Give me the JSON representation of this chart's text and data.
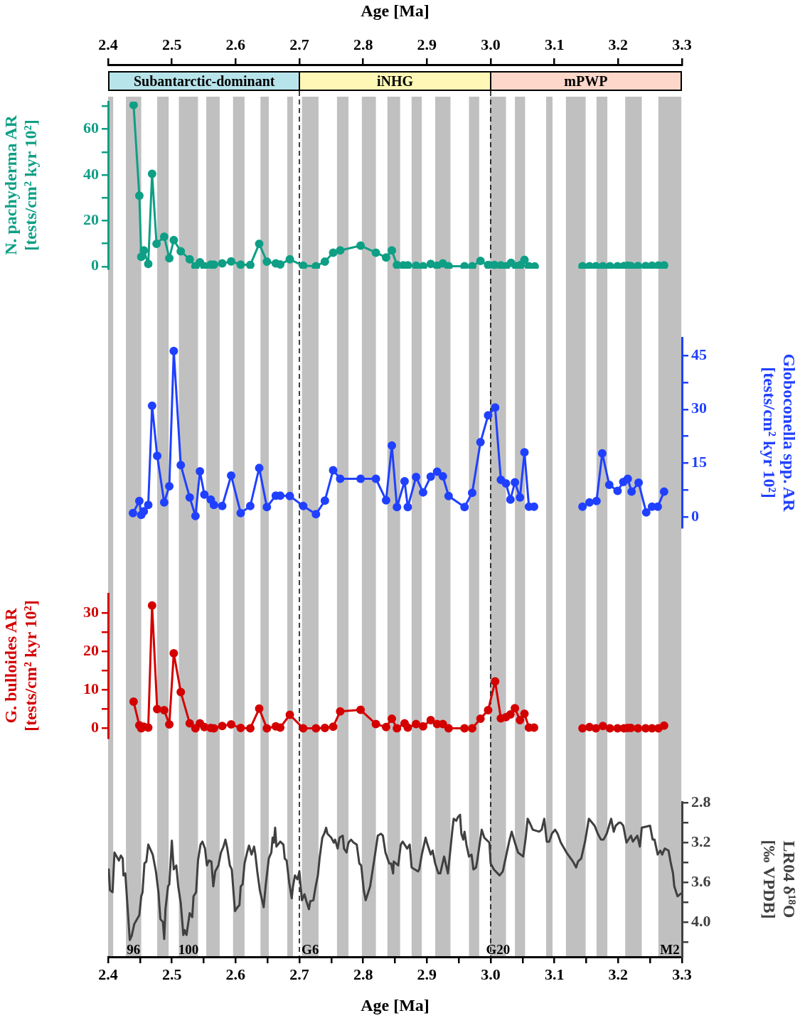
{
  "chart_data": [
    {
      "type": "line",
      "marker": "circle",
      "xlim": [
        2.4,
        3.3
      ],
      "xlabel": "Age [Ma]",
      "xticks": [
        2.4,
        2.5,
        2.6,
        2.7,
        2.8,
        2.9,
        {
          "value": 3,
          "label": "3.0"
        },
        3.1,
        3.2,
        3.3
      ],
      "ylim": [
        -1,
        72
      ],
      "yticks": [
        0,
        {
          "value": 10,
          "label": null
        },
        20,
        {
          "value": 30,
          "label": null
        },
        40,
        {
          "value": 50,
          "label": null
        },
        60,
        {
          "value": 70,
          "label": null
        }
      ],
      "ylabel": "N. pachyderma AR\n[tests/cm² kyr 10²]",
      "series": [
        {
          "color": "#0e9f85",
          "x": [
            2.44,
            2.449,
            2.452,
            2.456,
            2.463,
            2.469,
            2.476,
            2.488,
            2.496,
            2.503,
            2.514,
            2.528,
            2.537,
            2.544,
            2.551,
            2.561,
            2.566,
            2.579,
            2.593,
            2.608,
            2.623,
            2.637,
            2.649,
            2.663,
            2.67,
            2.685,
            2.706,
            2.726,
            2.74,
            2.753,
            2.764,
            2.796,
            2.82,
            2.836,
            2.845,
            2.853,
            2.863,
            2.87,
            2.883,
            2.894,
            2.906,
            2.916,
            2.925,
            2.934,
            2.959,
            2.971,
            2.984,
            2.996,
            3.006,
            3.016,
            3.024,
            3.032,
            3.04,
            3.047,
            3.053,
            3.06,
            3.069,
            3.1,
            3.144,
            3.155,
            3.165,
            3.176,
            3.187,
            3.199,
            3.209,
            3.215,
            3.22,
            3.231,
            3.243,
            3.253,
            3.263,
            3.272
          ],
          "values": [
            70.5,
            30.9,
            4.2,
            7.0,
            1.1,
            40.5,
            9.9,
            13.0,
            3.6,
            11.5,
            6.6,
            3.1,
            0.1,
            1.8,
            0.1,
            0.8,
            0.8,
            1.3,
            2.2,
            0.8,
            0.6,
            9.9,
            2.1,
            1.3,
            0.9,
            3.1,
            0.3,
            0.1,
            2.1,
            6.0,
            7.0,
            9.1,
            6.0,
            3.9,
            7.0,
            0.6,
            0.5,
            0.5,
            0.3,
            0.1,
            1.1,
            0.3,
            1.3,
            0.1,
            0.1,
            0.1,
            2.4,
            0.6,
            0.6,
            0.5,
            0.1,
            1.6,
            0.1,
            0.6,
            2.9,
            0.1,
            0,
            null,
            0.1,
            0.1,
            0.1,
            0.1,
            0.1,
            0.1,
            0.2,
            0.3,
            0.2,
            0.2,
            0.2,
            0.3,
            0.4,
            0.5
          ]
        }
      ],
      "bands": [
        {
          "axis": "x",
          "from": 2.4,
          "to": 2.408,
          "color": "#c0c0c0"
        },
        {
          "axis": "x",
          "from": 2.428,
          "to": 2.452,
          "color": "#c0c0c0"
        },
        {
          "axis": "x",
          "from": 2.477,
          "to": 2.495,
          "color": "#c0c0c0"
        },
        {
          "axis": "x",
          "from": 2.511,
          "to": 2.541,
          "color": "#c0c0c0"
        },
        {
          "axis": "x",
          "from": 2.554,
          "to": 2.575,
          "color": "#c0c0c0"
        },
        {
          "axis": "x",
          "from": 2.596,
          "to": 2.614,
          "color": "#c0c0c0"
        },
        {
          "axis": "x",
          "from": 2.639,
          "to": 2.652,
          "color": "#c0c0c0"
        },
        {
          "axis": "x",
          "from": 2.681,
          "to": 2.69,
          "color": "#c0c0c0"
        },
        {
          "axis": "x",
          "from": 2.704,
          "to": 2.73,
          "color": "#c0c0c0"
        },
        {
          "axis": "x",
          "from": 2.759,
          "to": 2.777,
          "color": "#c0c0c0"
        },
        {
          "axis": "x",
          "from": 2.798,
          "to": 2.82,
          "color": "#c0c0c0"
        },
        {
          "axis": "x",
          "from": 2.838,
          "to": 2.858,
          "color": "#c0c0c0"
        },
        {
          "axis": "x",
          "from": 2.876,
          "to": 2.892,
          "color": "#c0c0c0"
        },
        {
          "axis": "x",
          "from": 2.913,
          "to": 2.937,
          "color": "#c0c0c0"
        },
        {
          "axis": "x",
          "from": 2.966,
          "to": 2.982,
          "color": "#c0c0c0"
        },
        {
          "axis": "x",
          "from": 2.999,
          "to": 3.024,
          "color": "#c0c0c0"
        },
        {
          "axis": "x",
          "from": 3.038,
          "to": 3.054,
          "color": "#c0c0c0"
        },
        {
          "axis": "x",
          "from": 3.087,
          "to": 3.097,
          "color": "#c0c0c0"
        },
        {
          "axis": "x",
          "from": 3.118,
          "to": 3.149,
          "color": "#c0c0c0"
        },
        {
          "axis": "x",
          "from": 3.166,
          "to": 3.183,
          "color": "#c0c0c0"
        },
        {
          "axis": "x",
          "from": 3.211,
          "to": 3.237,
          "color": "#c0c0c0"
        },
        {
          "axis": "x",
          "from": 3.263,
          "to": 3.299,
          "color": "#c0c0c0"
        }
      ],
      "ref_lines": [
        {
          "axis": "x",
          "value": 2.7,
          "line_style": "dashed"
        },
        {
          "axis": "x",
          "value": 3.0,
          "line_style": "dashed"
        }
      ]
    },
    {
      "type": "other",
      "annotations": [
        "Subantarctic-dominant",
        "iNHG",
        "mPWP"
      ],
      "colors": [
        "#b7e4ea",
        "#fff7b5",
        "#fdd7c9"
      ]
    },
    {
      "type": "line",
      "marker": "circle",
      "xlim": [
        2.4,
        3.3
      ],
      "tick_labels": "y",
      "ylim": [
        -3,
        50
      ],
      "yticks": [
        0,
        {
          "value": 7.5,
          "label": null
        },
        15,
        {
          "value": 22.5,
          "label": null
        },
        30,
        {
          "value": 37.5,
          "label": null
        },
        45
      ],
      "ylabel": "Globoconella spp. AR\n[tests/cm² kyr 10²]",
      "series": [
        {
          "color": "#2040ff",
          "x": [
            2.439,
            2.449,
            2.452,
            2.456,
            2.463,
            2.469,
            2.477,
            2.488,
            2.496,
            2.503,
            2.514,
            2.528,
            2.537,
            2.544,
            2.551,
            2.561,
            2.566,
            2.579,
            2.593,
            2.608,
            2.623,
            2.637,
            2.649,
            2.663,
            2.67,
            2.685,
            2.706,
            2.726,
            2.74,
            2.753,
            2.764,
            2.796,
            2.82,
            2.836,
            2.845,
            2.853,
            2.865,
            2.87,
            2.883,
            2.894,
            2.906,
            2.916,
            2.925,
            2.934,
            2.959,
            2.971,
            2.984,
            2.996,
            3.007,
            3.016,
            3.024,
            3.031,
            3.038,
            3.046,
            3.053,
            3.06,
            3.068,
            3.1,
            3.144,
            3.155,
            3.166,
            3.175,
            3.186,
            3.199,
            3.208,
            3.215,
            3.221,
            3.232,
            3.244,
            3.253,
            3.262,
            3.272
          ],
          "values": [
            1.0,
            4.4,
            0.5,
            1.5,
            3.3,
            31.0,
            17.0,
            4.0,
            8.5,
            46.3,
            14.4,
            5.4,
            0.2,
            12.7,
            6.2,
            4.8,
            3.3,
            3.0,
            11.5,
            1.0,
            3.0,
            13.6,
            2.7,
            5.9,
            5.9,
            5.8,
            3.0,
            0.7,
            4.5,
            13.0,
            10.6,
            10.6,
            10.6,
            4.6,
            19.9,
            2.7,
            9.9,
            2.7,
            11.1,
            6.8,
            11.2,
            12.6,
            11.3,
            5.8,
            2.7,
            6.7,
            20.8,
            28.3,
            30.5,
            10.3,
            9.3,
            4.8,
            9.6,
            5.4,
            18.0,
            2.8,
            2.8,
            null,
            2.8,
            4.0,
            4.4,
            17.7,
            8.9,
            7.2,
            9.7,
            10.6,
            7.0,
            9.5,
            1.2,
            2.8,
            2.8,
            7.0
          ]
        }
      ],
      "bands": [
        {
          "axis": "x",
          "from": 2.4,
          "to": 2.408,
          "color": "#c0c0c0"
        },
        {
          "axis": "x",
          "from": 2.428,
          "to": 2.452,
          "color": "#c0c0c0"
        },
        {
          "axis": "x",
          "from": 2.477,
          "to": 2.495,
          "color": "#c0c0c0"
        },
        {
          "axis": "x",
          "from": 2.511,
          "to": 2.541,
          "color": "#c0c0c0"
        },
        {
          "axis": "x",
          "from": 2.554,
          "to": 2.575,
          "color": "#c0c0c0"
        },
        {
          "axis": "x",
          "from": 2.596,
          "to": 2.614,
          "color": "#c0c0c0"
        },
        {
          "axis": "x",
          "from": 2.639,
          "to": 2.652,
          "color": "#c0c0c0"
        },
        {
          "axis": "x",
          "from": 2.681,
          "to": 2.69,
          "color": "#c0c0c0"
        },
        {
          "axis": "x",
          "from": 2.704,
          "to": 2.73,
          "color": "#c0c0c0"
        },
        {
          "axis": "x",
          "from": 2.759,
          "to": 2.777,
          "color": "#c0c0c0"
        },
        {
          "axis": "x",
          "from": 2.798,
          "to": 2.82,
          "color": "#c0c0c0"
        },
        {
          "axis": "x",
          "from": 2.838,
          "to": 2.858,
          "color": "#c0c0c0"
        },
        {
          "axis": "x",
          "from": 2.876,
          "to": 2.892,
          "color": "#c0c0c0"
        },
        {
          "axis": "x",
          "from": 2.913,
          "to": 2.937,
          "color": "#c0c0c0"
        },
        {
          "axis": "x",
          "from": 2.966,
          "to": 2.982,
          "color": "#c0c0c0"
        },
        {
          "axis": "x",
          "from": 2.999,
          "to": 3.024,
          "color": "#c0c0c0"
        },
        {
          "axis": "x",
          "from": 3.038,
          "to": 3.054,
          "color": "#c0c0c0"
        },
        {
          "axis": "x",
          "from": 3.087,
          "to": 3.097,
          "color": "#c0c0c0"
        },
        {
          "axis": "x",
          "from": 3.118,
          "to": 3.149,
          "color": "#c0c0c0"
        },
        {
          "axis": "x",
          "from": 3.166,
          "to": 3.183,
          "color": "#c0c0c0"
        },
        {
          "axis": "x",
          "from": 3.211,
          "to": 3.237,
          "color": "#c0c0c0"
        },
        {
          "axis": "x",
          "from": 3.263,
          "to": 3.299,
          "color": "#c0c0c0"
        }
      ],
      "ref_lines": [
        {
          "axis": "x",
          "value": 2.7,
          "line_style": "dashed"
        },
        {
          "axis": "x",
          "value": 3.0,
          "line_style": "dashed"
        }
      ]
    },
    {
      "type": "line",
      "marker": "circle",
      "xlim": [
        2.4,
        3.3
      ],
      "tick_labels": "y",
      "ylim": [
        -2.5,
        35
      ],
      "yticks": [
        0,
        {
          "value": 5,
          "label": null
        },
        10,
        {
          "value": 15,
          "label": null
        },
        20,
        {
          "value": 25,
          "label": null
        },
        30
      ],
      "ylabel": "G. bulloides AR\n[tests/cm² kyr 10²]",
      "series": [
        {
          "color": "#d40000",
          "x": [
            2.44,
            2.449,
            2.452,
            2.456,
            2.463,
            2.469,
            2.477,
            2.488,
            2.496,
            2.503,
            2.514,
            2.528,
            2.537,
            2.544,
            2.551,
            2.561,
            2.566,
            2.579,
            2.593,
            2.608,
            2.623,
            2.637,
            2.649,
            2.663,
            2.67,
            2.685,
            2.706,
            2.726,
            2.74,
            2.753,
            2.764,
            2.796,
            2.82,
            2.836,
            2.845,
            2.853,
            2.865,
            2.87,
            2.883,
            2.894,
            2.906,
            2.916,
            2.925,
            2.934,
            2.959,
            2.971,
            2.984,
            2.996,
            3.007,
            3.016,
            3.024,
            3.031,
            3.038,
            3.046,
            3.053,
            3.06,
            3.068,
            3.1,
            3.144,
            3.155,
            3.165,
            3.176,
            3.187,
            3.199,
            3.209,
            3.215,
            3.22,
            3.231,
            3.243,
            3.253,
            3.263,
            3.272
          ],
          "values": [
            6.9,
            0.8,
            0,
            0.4,
            0.2,
            31.9,
            5.0,
            4.7,
            1.0,
            19.5,
            9.4,
            1.3,
            0,
            1.3,
            0.3,
            0.1,
            0,
            0.6,
            1.0,
            0.1,
            0,
            5.1,
            0,
            0.5,
            0.2,
            3.5,
            0,
            0,
            0.1,
            0.4,
            4.4,
            4.8,
            1.1,
            0.3,
            2.5,
            0,
            1.3,
            0.2,
            1.1,
            0.5,
            2.1,
            1.1,
            1.1,
            0,
            0,
            0,
            2.5,
            4.7,
            12.2,
            2.6,
            2.9,
            3.6,
            5.2,
            2.1,
            3.8,
            0.2,
            0.2,
            null,
            0,
            0.3,
            0,
            0.6,
            0,
            0,
            0,
            0.1,
            0.1,
            0,
            0,
            0,
            0,
            0.7
          ]
        }
      ],
      "bands": [
        {
          "axis": "x",
          "from": 2.4,
          "to": 2.408,
          "color": "#c0c0c0"
        },
        {
          "axis": "x",
          "from": 2.428,
          "to": 2.452,
          "color": "#c0c0c0"
        },
        {
          "axis": "x",
          "from": 2.477,
          "to": 2.495,
          "color": "#c0c0c0"
        },
        {
          "axis": "x",
          "from": 2.511,
          "to": 2.541,
          "color": "#c0c0c0"
        },
        {
          "axis": "x",
          "from": 2.554,
          "to": 2.575,
          "color": "#c0c0c0"
        },
        {
          "axis": "x",
          "from": 2.596,
          "to": 2.614,
          "color": "#c0c0c0"
        },
        {
          "axis": "x",
          "from": 2.639,
          "to": 2.652,
          "color": "#c0c0c0"
        },
        {
          "axis": "x",
          "from": 2.681,
          "to": 2.69,
          "color": "#c0c0c0"
        },
        {
          "axis": "x",
          "from": 2.704,
          "to": 2.73,
          "color": "#c0c0c0"
        },
        {
          "axis": "x",
          "from": 2.759,
          "to": 2.777,
          "color": "#c0c0c0"
        },
        {
          "axis": "x",
          "from": 2.798,
          "to": 2.82,
          "color": "#c0c0c0"
        },
        {
          "axis": "x",
          "from": 2.838,
          "to": 2.858,
          "color": "#c0c0c0"
        },
        {
          "axis": "x",
          "from": 2.876,
          "to": 2.892,
          "color": "#c0c0c0"
        },
        {
          "axis": "x",
          "from": 2.913,
          "to": 2.937,
          "color": "#c0c0c0"
        },
        {
          "axis": "x",
          "from": 2.966,
          "to": 2.982,
          "color": "#c0c0c0"
        },
        {
          "axis": "x",
          "from": 2.999,
          "to": 3.024,
          "color": "#c0c0c0"
        },
        {
          "axis": "x",
          "from": 3.038,
          "to": 3.054,
          "color": "#c0c0c0"
        },
        {
          "axis": "x",
          "from": 3.087,
          "to": 3.097,
          "color": "#c0c0c0"
        },
        {
          "axis": "x",
          "from": 3.118,
          "to": 3.149,
          "color": "#c0c0c0"
        },
        {
          "axis": "x",
          "from": 3.166,
          "to": 3.183,
          "color": "#c0c0c0"
        },
        {
          "axis": "x",
          "from": 3.211,
          "to": 3.237,
          "color": "#c0c0c0"
        },
        {
          "axis": "x",
          "from": 3.263,
          "to": 3.299,
          "color": "#c0c0c0"
        }
      ],
      "ref_lines": [
        {
          "axis": "x",
          "value": 2.7,
          "line_style": "dashed"
        },
        {
          "axis": "x",
          "value": 3.0,
          "line_style": "dashed"
        }
      ]
    },
    {
      "type": "line",
      "xlim": [
        2.4,
        3.3
      ],
      "xlabel": "Age [Ma]",
      "xticks": [
        2.4,
        {
          "value": 2.45,
          "label": null
        },
        2.5,
        {
          "value": 2.55,
          "label": null
        },
        2.6,
        {
          "value": 2.65,
          "label": null
        },
        2.7,
        {
          "value": 2.75,
          "label": null
        },
        2.8,
        {
          "value": 2.85,
          "label": null
        },
        2.9,
        {
          "value": 2.95,
          "label": null
        },
        {
          "value": 3,
          "label": "3.0"
        },
        {
          "value": 3.05,
          "label": null
        },
        3.1,
        {
          "value": 3.15,
          "label": null
        },
        3.2,
        {
          "value": 3.25,
          "label": null
        },
        3.3
      ],
      "ylim": [
        4.35,
        2.79
      ],
      "yticks": [
        2.8,
        {
          "value": 3,
          "label": null
        },
        3.2,
        {
          "value": 3.4,
          "label": null
        },
        3.6,
        {
          "value": 3.8,
          "label": null
        },
        {
          "value": 4,
          "label": "4.0"
        },
        {
          "value": 4.2,
          "label": null
        }
      ],
      "ylabel": "LR04 δ¹⁸O\n[‰ VPDB]",
      "series": [
        {
          "color": "#404040",
          "x": [
            2.401,
            2.403,
            2.407,
            2.41,
            2.417,
            2.42,
            2.423,
            2.424,
            2.427,
            2.434,
            2.437,
            2.441,
            2.449,
            2.452,
            2.454,
            2.457,
            2.46,
            2.463,
            2.47,
            2.475,
            2.479,
            2.482,
            2.486,
            2.488,
            2.49,
            2.494,
            2.496,
            2.5,
            2.503,
            2.507,
            2.51,
            2.514,
            2.518,
            2.52,
            2.523,
            2.528,
            2.532,
            2.534,
            2.538,
            2.541,
            2.545,
            2.548,
            2.552,
            2.555,
            2.558,
            2.562,
            2.565,
            2.568,
            2.573,
            2.577,
            2.581,
            2.584,
            2.587,
            2.591,
            2.594,
            2.599,
            2.603,
            2.606,
            2.608,
            2.611,
            2.614,
            2.618,
            2.621,
            2.625,
            2.629,
            2.631,
            2.634,
            2.638,
            2.644,
            2.647,
            2.652,
            2.656,
            2.658,
            2.66,
            2.662,
            2.664,
            2.67,
            2.675,
            2.677,
            2.68,
            2.684,
            2.688,
            2.69,
            2.693,
            2.697,
            2.7,
            2.704,
            2.708,
            2.711,
            2.715,
            2.717,
            2.722,
            2.725,
            2.729,
            2.732,
            2.736,
            2.739,
            2.742,
            2.744,
            2.75,
            2.754,
            2.756,
            2.76,
            2.763,
            2.768,
            2.77,
            2.774,
            2.777,
            2.781,
            2.785,
            2.79,
            2.794,
            2.797,
            2.801,
            2.804,
            2.811,
            2.816,
            2.82,
            2.823,
            2.828,
            2.831,
            2.835,
            2.841,
            2.844,
            2.847,
            2.848,
            2.855,
            2.859,
            2.862,
            2.869,
            2.873,
            2.876,
            2.886,
            2.888,
            2.892,
            2.898,
            2.9,
            2.906,
            2.909,
            2.913,
            2.918,
            2.921,
            2.927,
            2.933,
            2.937,
            2.94,
            2.942,
            2.946,
            2.949,
            2.952,
            2.954,
            2.957,
            2.959,
            2.962,
            2.966,
            2.97,
            2.973,
            2.977,
            2.979,
            2.983,
            2.986,
            2.99,
            2.998,
            3.0,
            3.005,
            3.014,
            3.019,
            3.024,
            3.029,
            3.033,
            3.038,
            3.043,
            3.051,
            3.055,
            3.058,
            3.062,
            3.066,
            3.076,
            3.08,
            3.084,
            3.088,
            3.092,
            3.096,
            3.101,
            3.105,
            3.11,
            3.119,
            3.129,
            3.134,
            3.137,
            3.142,
            3.148,
            3.154,
            3.163,
            3.168,
            3.173,
            3.177,
            3.182,
            3.189,
            3.193,
            3.196,
            3.201,
            3.204,
            3.208,
            3.213,
            3.22,
            3.223,
            3.23,
            3.234,
            3.237,
            3.25,
            3.254,
            3.257,
            3.262,
            3.266,
            3.269,
            3.273,
            3.279,
            3.282,
            3.286,
            3.288,
            3.293,
            3.299
          ],
          "values": [
            3.47,
            3.68,
            3.7,
            3.3,
            3.38,
            3.33,
            3.36,
            3.53,
            3.51,
            4.18,
            4.14,
            4.02,
            3.93,
            3.74,
            3.7,
            3.41,
            3.39,
            3.22,
            3.32,
            3.49,
            3.7,
            3.97,
            4.0,
            4.17,
            3.87,
            3.64,
            3.62,
            3.18,
            3.47,
            3.43,
            3.64,
            3.81,
            4.13,
            4.08,
            4.13,
            3.91,
            3.95,
            3.74,
            3.7,
            3.38,
            3.22,
            3.19,
            3.26,
            3.43,
            3.38,
            3.39,
            3.64,
            3.49,
            3.43,
            3.3,
            3.24,
            3.17,
            3.26,
            3.43,
            3.47,
            3.89,
            3.85,
            3.83,
            3.64,
            3.62,
            3.41,
            3.3,
            3.23,
            3.32,
            3.24,
            3.32,
            3.49,
            3.68,
            3.85,
            3.64,
            3.36,
            3.3,
            3.15,
            3.2,
            3.05,
            3.24,
            3.19,
            3.22,
            3.36,
            3.38,
            3.6,
            3.76,
            3.64,
            3.53,
            3.57,
            3.49,
            3.78,
            3.72,
            3.79,
            3.87,
            3.79,
            3.78,
            3.66,
            3.53,
            3.34,
            3.15,
            3.11,
            3.05,
            3.11,
            3.15,
            3.2,
            3.17,
            3.26,
            3.15,
            3.13,
            3.26,
            3.3,
            3.2,
            3.17,
            3.2,
            3.22,
            3.41,
            3.43,
            3.68,
            3.78,
            3.64,
            3.43,
            3.26,
            3.13,
            3.11,
            3.13,
            3.3,
            3.41,
            3.41,
            3.51,
            3.39,
            3.43,
            3.22,
            3.19,
            3.26,
            3.22,
            3.45,
            3.49,
            3.47,
            3.32,
            3.15,
            3.2,
            3.32,
            3.28,
            3.41,
            3.51,
            3.51,
            3.34,
            3.51,
            3.26,
            3.07,
            2.96,
            2.98,
            2.94,
            2.92,
            3.11,
            3.17,
            3.09,
            3.22,
            3.34,
            3.32,
            3.47,
            3.45,
            3.38,
            3.2,
            3.07,
            3.15,
            3.2,
            3.41,
            3.47,
            3.53,
            3.49,
            3.34,
            3.19,
            3.09,
            3.2,
            3.3,
            3.34,
            3.15,
            2.96,
            3.01,
            3.07,
            3.09,
            3.07,
            2.96,
            3.19,
            3.19,
            3.11,
            3.07,
            3.11,
            3.2,
            3.3,
            3.39,
            3.45,
            3.39,
            3.36,
            3.19,
            2.96,
            3.03,
            3.11,
            3.17,
            3.17,
            3.11,
            2.96,
            3.09,
            3.03,
            3.0,
            3.0,
            3.03,
            3.2,
            3.13,
            3.19,
            3.13,
            3.24,
            3.05,
            3.03,
            3.17,
            3.17,
            3.32,
            3.28,
            3.32,
            3.26,
            3.28,
            3.39,
            3.51,
            3.64,
            3.74,
            3.71
          ]
        }
      ],
      "bands": [
        {
          "axis": "x",
          "from": 2.4,
          "to": 2.408,
          "color": "#c0c0c0"
        },
        {
          "axis": "x",
          "from": 2.428,
          "to": 2.452,
          "color": "#c0c0c0",
          "label": "96"
        },
        {
          "axis": "x",
          "from": 2.477,
          "to": 2.495,
          "color": "#c0c0c0"
        },
        {
          "axis": "x",
          "from": 2.511,
          "to": 2.541,
          "color": "#c0c0c0",
          "label": "100"
        },
        {
          "axis": "x",
          "from": 2.554,
          "to": 2.575,
          "color": "#c0c0c0"
        },
        {
          "axis": "x",
          "from": 2.596,
          "to": 2.614,
          "color": "#c0c0c0"
        },
        {
          "axis": "x",
          "from": 2.639,
          "to": 2.652,
          "color": "#c0c0c0"
        },
        {
          "axis": "x",
          "from": 2.681,
          "to": 2.69,
          "color": "#c0c0c0"
        },
        {
          "axis": "x",
          "from": 2.704,
          "to": 2.73,
          "color": "#c0c0c0",
          "label": "G6"
        },
        {
          "axis": "x",
          "from": 2.759,
          "to": 2.777,
          "color": "#c0c0c0"
        },
        {
          "axis": "x",
          "from": 2.798,
          "to": 2.82,
          "color": "#c0c0c0"
        },
        {
          "axis": "x",
          "from": 2.838,
          "to": 2.858,
          "color": "#c0c0c0"
        },
        {
          "axis": "x",
          "from": 2.876,
          "to": 2.892,
          "color": "#c0c0c0"
        },
        {
          "axis": "x",
          "from": 2.913,
          "to": 2.937,
          "color": "#c0c0c0"
        },
        {
          "axis": "x",
          "from": 2.966,
          "to": 2.982,
          "color": "#c0c0c0"
        },
        {
          "axis": "x",
          "from": 2.999,
          "to": 3.024,
          "color": "#c0c0c0",
          "label": "G20"
        },
        {
          "axis": "x",
          "from": 3.038,
          "to": 3.054,
          "color": "#c0c0c0"
        },
        {
          "axis": "x",
          "from": 3.087,
          "to": 3.097,
          "color": "#c0c0c0"
        },
        {
          "axis": "x",
          "from": 3.118,
          "to": 3.149,
          "color": "#c0c0c0"
        },
        {
          "axis": "x",
          "from": 3.166,
          "to": 3.183,
          "color": "#c0c0c0"
        },
        {
          "axis": "x",
          "from": 3.211,
          "to": 3.237,
          "color": "#c0c0c0"
        },
        {
          "axis": "x",
          "from": 3.263,
          "to": 3.299,
          "color": "#c0c0c0",
          "label": "M2"
        }
      ],
      "ref_lines": [
        {
          "axis": "x",
          "value": 2.7,
          "line_style": "dashed"
        },
        {
          "axis": "x",
          "value": 3.0,
          "line_style": "dashed"
        }
      ]
    }
  ]
}
